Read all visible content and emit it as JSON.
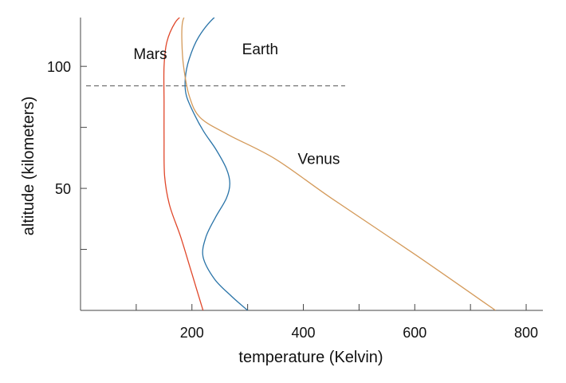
{
  "chart_data": {
    "type": "line",
    "xlabel": "temperature (Kelvin)",
    "ylabel": "altitude (kilometers)",
    "xlim": [
      0,
      830
    ],
    "ylim": [
      0,
      120
    ],
    "x_ticks": [
      100,
      200,
      300,
      400,
      500,
      600,
      700,
      800
    ],
    "x_tick_labels": [
      {
        "value": 200,
        "label": "200"
      },
      {
        "value": 400,
        "label": "400"
      },
      {
        "value": 600,
        "label": "600"
      },
      {
        "value": 800,
        "label": "800"
      }
    ],
    "y_ticks": [
      25,
      50,
      75,
      100
    ],
    "y_tick_labels": [
      {
        "value": 50,
        "label": "50"
      },
      {
        "value": 100,
        "label": "100"
      }
    ],
    "reference_line": {
      "y": 92,
      "x_start": 10,
      "x_end": 475
    },
    "series": [
      {
        "name": "Mars",
        "color": "#e0472a",
        "label_at": {
          "x": 95,
          "y": 103
        },
        "points": [
          [
            220,
            0
          ],
          [
            200,
            15
          ],
          [
            180,
            30
          ],
          [
            160,
            43
          ],
          [
            151,
            55
          ],
          [
            150,
            70
          ],
          [
            150,
            85
          ],
          [
            150,
            100
          ],
          [
            155,
            110
          ],
          [
            170,
            118
          ],
          [
            188,
            122
          ]
        ]
      },
      {
        "name": "Earth",
        "color": "#2a74a8",
        "label_at": {
          "x": 290,
          "y": 105
        },
        "points": [
          [
            300,
            0
          ],
          [
            270,
            6
          ],
          [
            240,
            13
          ],
          [
            220,
            22
          ],
          [
            225,
            30
          ],
          [
            242,
            38
          ],
          [
            262,
            46
          ],
          [
            268,
            52
          ],
          [
            262,
            58
          ],
          [
            243,
            66
          ],
          [
            222,
            73
          ],
          [
            205,
            80
          ],
          [
            190,
            88
          ],
          [
            188,
            95
          ],
          [
            195,
            103
          ],
          [
            212,
            112
          ],
          [
            240,
            120
          ],
          [
            268,
            124
          ]
        ]
      },
      {
        "name": "Venus",
        "color": "#d49a5a",
        "label_at": {
          "x": 390,
          "y": 60
        },
        "points": [
          [
            745,
            0
          ],
          [
            600,
            23
          ],
          [
            450,
            46
          ],
          [
            350,
            62
          ],
          [
            265,
            72
          ],
          [
            215,
            79
          ],
          [
            195,
            88
          ],
          [
            185,
            100
          ],
          [
            182,
            110
          ],
          [
            183,
            118
          ],
          [
            190,
            122
          ]
        ]
      }
    ]
  }
}
